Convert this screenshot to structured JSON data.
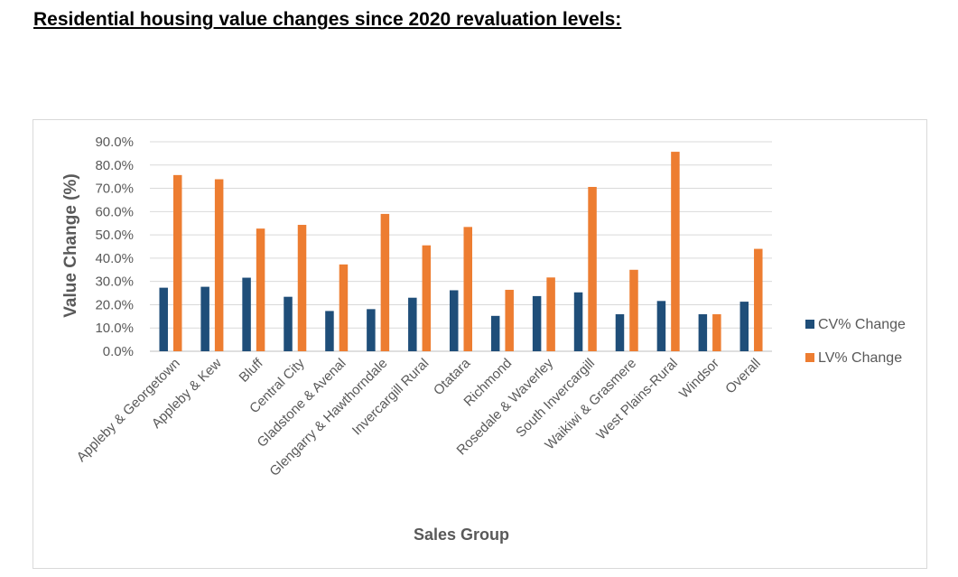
{
  "heading": "Residential housing value changes since 2020 revaluation levels:",
  "chart_data": {
    "type": "bar",
    "title": "",
    "xlabel": "Sales Group",
    "ylabel": "Value Change (%)",
    "ylim": [
      0,
      90
    ],
    "y_ticks": [
      "0.0%",
      "10.0%",
      "20.0%",
      "30.0%",
      "40.0%",
      "50.0%",
      "60.0%",
      "70.0%",
      "80.0%",
      "90.0%"
    ],
    "grid": true,
    "legend_position": "right",
    "categories": [
      "Appleby & Georgetown",
      "Appleby & Kew",
      "Bluff",
      "Central City",
      "Gladstone & Avenal",
      "Glengarry & Hawthorndale",
      "Invercargill Rural",
      "Otatara",
      "Richmond",
      "Rosedale & Waverley",
      "South Invercargill",
      "Waikiwi & Grasmere",
      "West Plains-Rural",
      "Windsor",
      "Overall"
    ],
    "series": [
      {
        "name": "CV% Change",
        "color": "#1f4e79",
        "values": [
          27.3,
          27.7,
          31.6,
          23.4,
          17.3,
          18.1,
          23.0,
          26.2,
          15.2,
          23.7,
          25.3,
          15.9,
          21.6,
          15.9,
          21.3
        ]
      },
      {
        "name": "LV% Change",
        "color": "#ed7d31",
        "values": [
          75.7,
          73.9,
          52.7,
          54.3,
          37.3,
          59.0,
          45.5,
          53.4,
          26.4,
          31.7,
          70.6,
          35.0,
          85.7,
          15.9,
          44.0
        ]
      }
    ]
  }
}
